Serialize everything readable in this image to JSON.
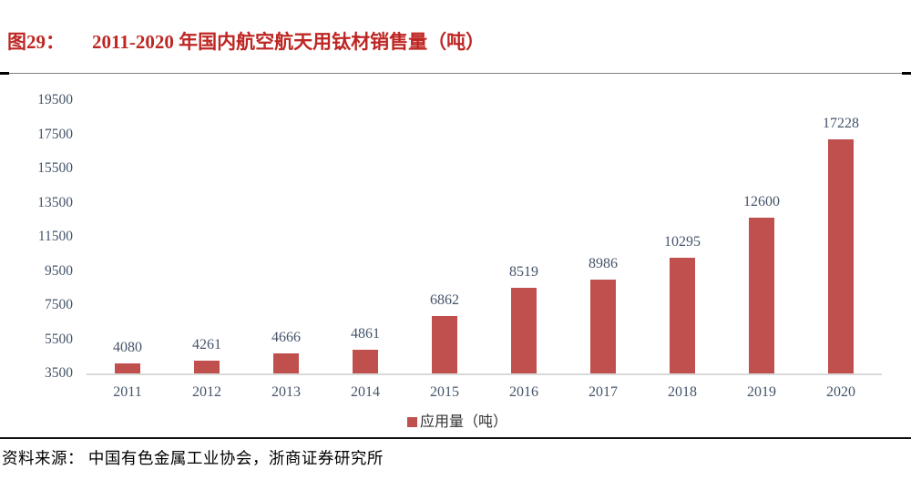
{
  "header": {
    "figure_label": "图29：",
    "figure_title": "2011-2020 年国内航空航天用钛材销售量（吨）"
  },
  "chart_data": {
    "type": "bar",
    "title": "2011-2020 年国内航空航天用钛材销售量（吨）",
    "categories": [
      "2011",
      "2012",
      "2013",
      "2014",
      "2015",
      "2016",
      "2017",
      "2018",
      "2019",
      "2020"
    ],
    "values": [
      4080,
      4261,
      4666,
      4861,
      6862,
      8519,
      8986,
      10295,
      12600,
      17228
    ],
    "legend_label": "应用量（吨）",
    "xlabel": "",
    "ylabel": "",
    "ylim": [
      3500,
      19500
    ],
    "ytick_step": 2000,
    "yticks": [
      3500,
      5500,
      7500,
      9500,
      11500,
      13500,
      15500,
      17500,
      19500
    ],
    "grid": false,
    "legend_position": "bottom-center",
    "bar_color": "#C0504D",
    "label_color": "#44546A",
    "axis_line_color": "#D9D9D9",
    "title_color": "#BE2623"
  },
  "footer": {
    "source": "资料来源： 中国有色金属工业协会，浙商证券研究所"
  }
}
